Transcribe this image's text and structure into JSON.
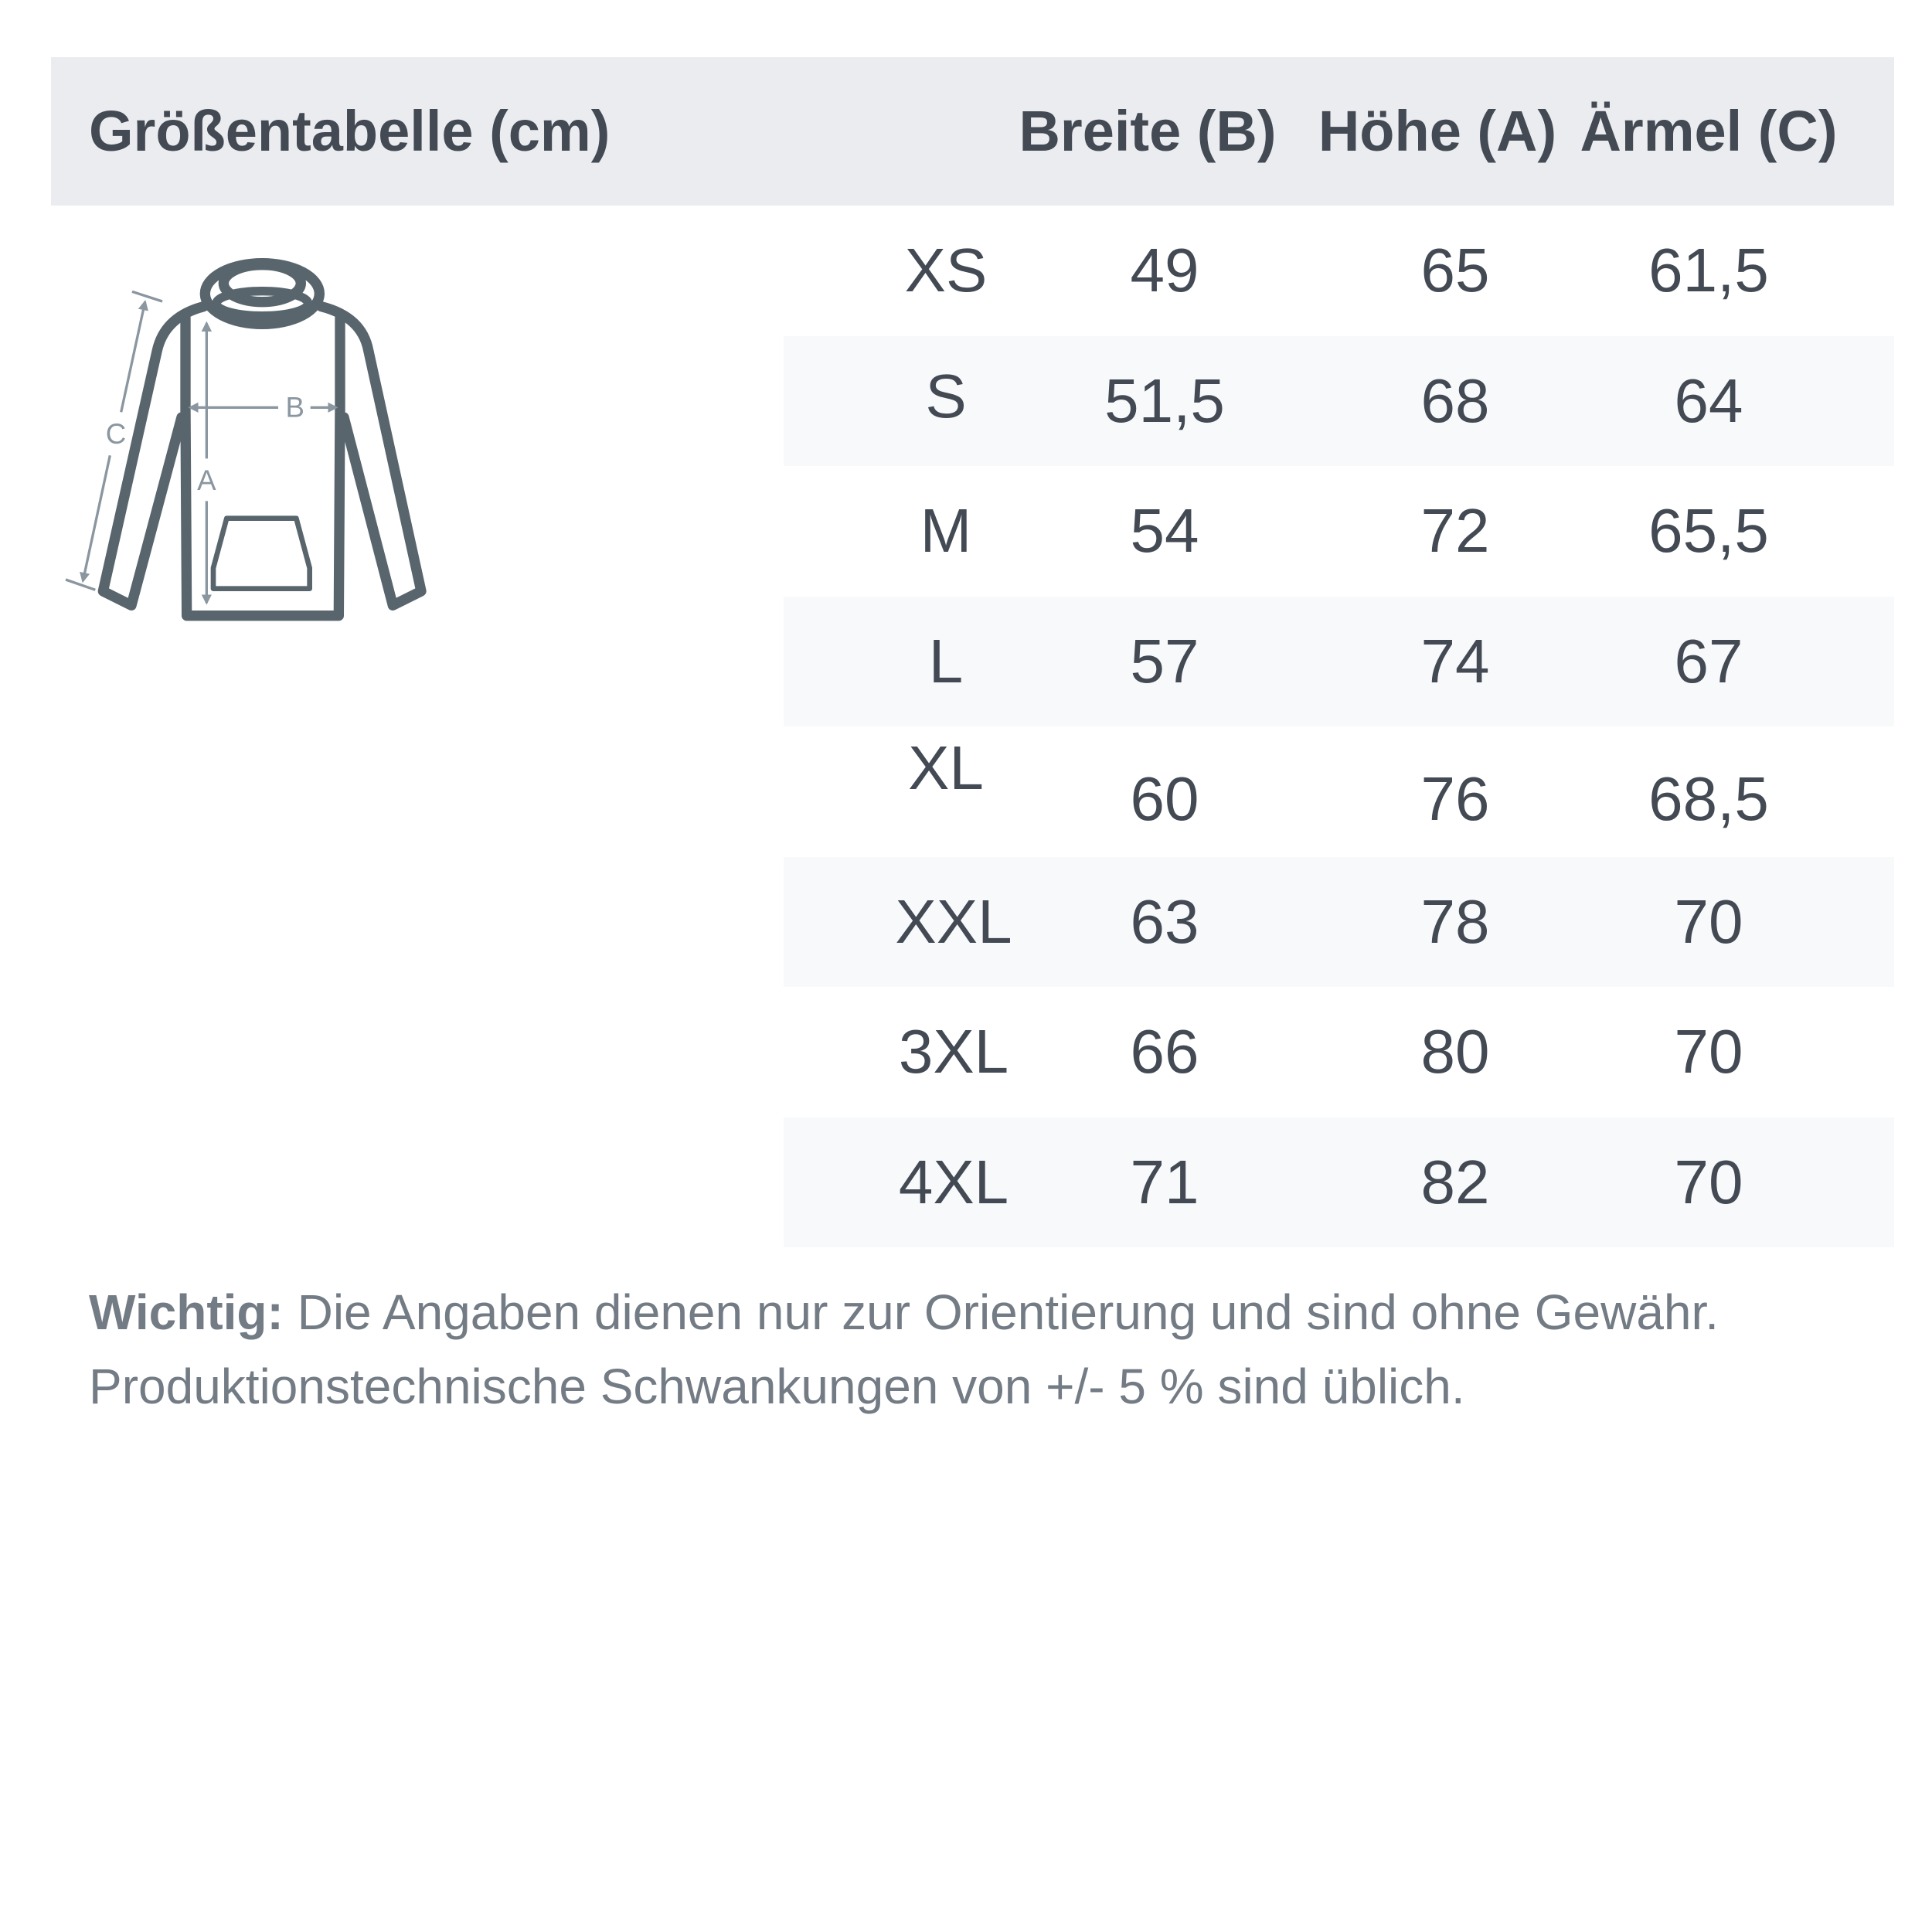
{
  "header": {
    "title": "Größentabelle (cm)",
    "columns": [
      "Breite (B)",
      "Höhe (A)",
      "Ärmel (C)"
    ]
  },
  "diagram": {
    "labels": {
      "width": "B",
      "height": "A",
      "sleeve": "C"
    }
  },
  "rows": [
    {
      "size": "XS",
      "breite": "49",
      "hoehe": "65",
      "aermel": "61,5"
    },
    {
      "size": "S",
      "breite": "51,5",
      "hoehe": "68",
      "aermel": "64"
    },
    {
      "size": "M",
      "breite": "54",
      "hoehe": "72",
      "aermel": "65,5"
    },
    {
      "size": "L",
      "breite": "57",
      "hoehe": "74",
      "aermel": "67"
    },
    {
      "size": "XL",
      "breite": "60",
      "hoehe": "76",
      "aermel": "68,5"
    },
    {
      "size": "XXL",
      "breite": "63",
      "hoehe": "78",
      "aermel": "70"
    },
    {
      "size": "3XL",
      "breite": "66",
      "hoehe": "80",
      "aermel": "70"
    },
    {
      "size": "4XL",
      "breite": "71",
      "hoehe": "82",
      "aermel": "70"
    }
  ],
  "note": {
    "label": "Wichtig:",
    "line1": " Die Angaben dienen nur zur Orientierung und sind ohne Gewähr.",
    "line2": "Produktionstechnische Schwankungen von +/- 5 % sind üblich."
  },
  "colors": {
    "header_bg": "#ebecf0",
    "stripe_bg": "#f8f9fb",
    "text": "#434a54",
    "garment": "#58656d",
    "measure": "#8a96a0"
  }
}
